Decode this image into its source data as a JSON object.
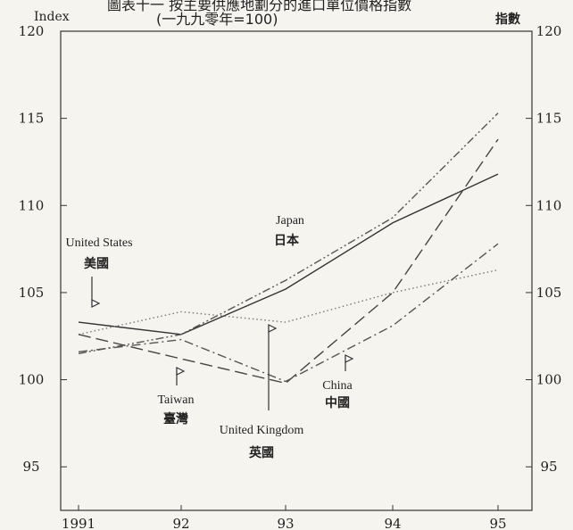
{
  "chart_data": {
    "type": "line",
    "title": "圖表十一  按主要供應地劃分的進口單位價格指數",
    "subtitle": "(一九九零年=100)",
    "ylabel_left": "Index",
    "ylabel_right": "指數",
    "categories": [
      "1991",
      "92",
      "93",
      "94",
      "95"
    ],
    "ylim": [
      92.5,
      120
    ],
    "yticks": [
      95,
      100,
      105,
      110,
      115,
      120
    ],
    "grid": false,
    "series": [
      {
        "key": "japan",
        "values": [
          103.3,
          102.6,
          105.2,
          109.0,
          111.8
        ],
        "color": "#333333",
        "dash": ""
      },
      {
        "key": "us",
        "values": [
          101.5,
          102.6,
          105.7,
          109.3,
          115.3
        ],
        "color": "#555555",
        "dash": "9 3 2 3 2 3"
      },
      {
        "key": "taiwan",
        "values": [
          102.6,
          103.9,
          103.3,
          105.0,
          106.3
        ],
        "color": "#777777",
        "dash": "1.5 3"
      },
      {
        "key": "uk",
        "values": [
          102.6,
          101.2,
          99.8,
          105.0,
          113.8
        ],
        "color": "#444444",
        "dash": "14 6"
      },
      {
        "key": "china",
        "values": [
          101.6,
          102.3,
          99.9,
          103.1,
          107.8
        ],
        "color": "#555555",
        "dash": "10 4 2 4"
      }
    ]
  },
  "annotations": {
    "japan_en": "Japan",
    "japan_zh": "日本",
    "us_en": "United States",
    "us_zh": "美國",
    "taiwan_en": "Taiwan",
    "taiwan_zh": "臺灣",
    "uk_en": "United Kingdom",
    "uk_zh": "英國",
    "china_en": "China",
    "china_zh": "中國"
  }
}
